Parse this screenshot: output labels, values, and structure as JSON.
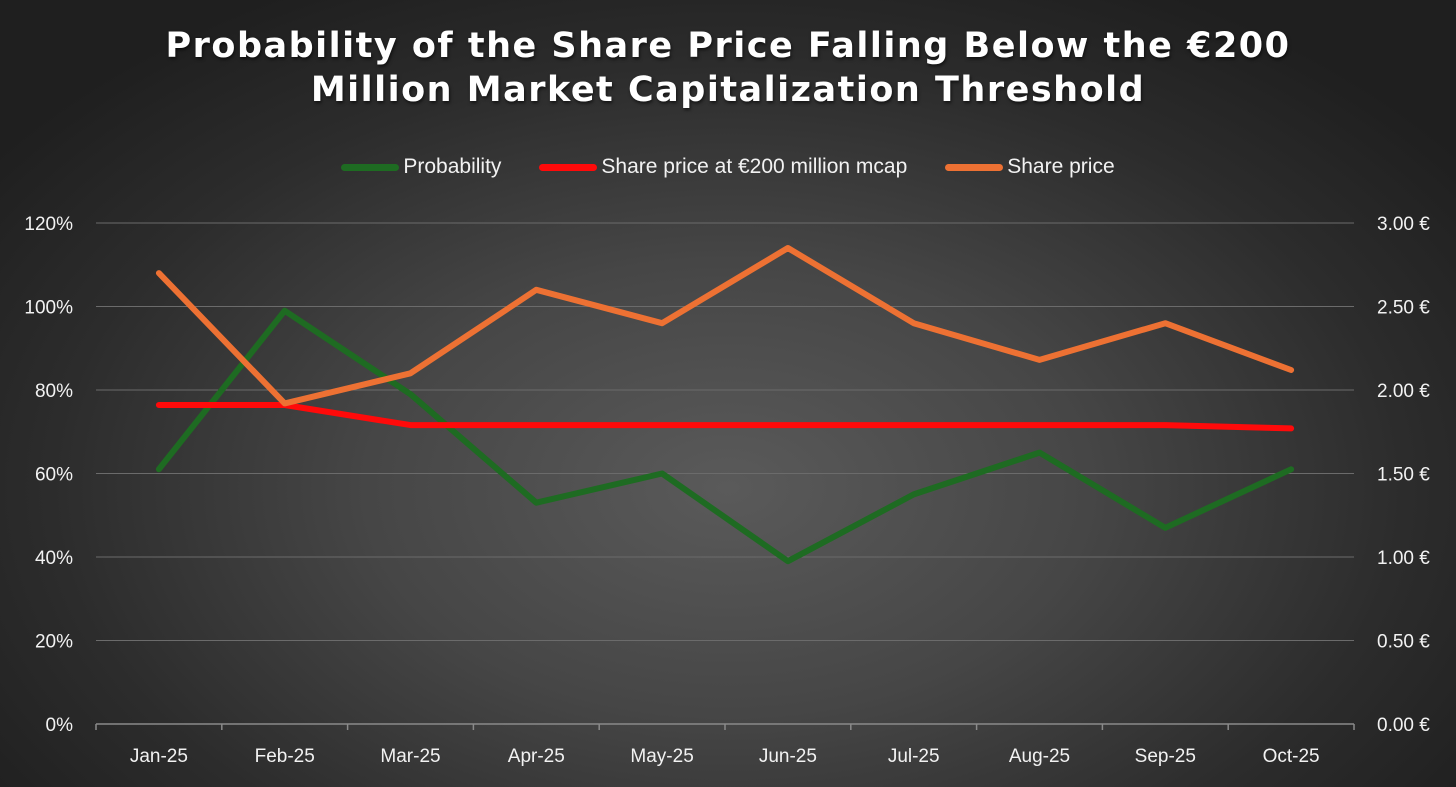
{
  "chart_data": {
    "type": "line",
    "title_lines": [
      "Probability of the Share Price Falling Below the €200",
      "Million Market Capitalization Threshold"
    ],
    "categories": [
      "Jan-25",
      "Feb-25",
      "Mar-25",
      "Apr-25",
      "May-25",
      "Jun-25",
      "Jul-25",
      "Aug-25",
      "Sep-25",
      "Oct-25"
    ],
    "left_axis": {
      "ylim": [
        0,
        1.2
      ],
      "tick_values": [
        0,
        0.2,
        0.4,
        0.6,
        0.8,
        1.0,
        1.2
      ],
      "tick_labels": [
        "0%",
        "20%",
        "40%",
        "60%",
        "80%",
        "100%",
        "120%"
      ]
    },
    "right_axis": {
      "ylim": [
        0,
        3.0
      ],
      "tick_values": [
        0,
        0.5,
        1.0,
        1.5,
        2.0,
        2.5,
        3.0
      ],
      "tick_labels": [
        "0.00 €",
        "0.50 €",
        "1.00 €",
        "1.50 €",
        "2.00 €",
        "2.50 €",
        "3.00 €"
      ]
    },
    "grid": true,
    "legend_position": "top-center",
    "series": [
      {
        "name": "Probability",
        "axis": "left",
        "color": "#1e6b22",
        "values": [
          0.61,
          0.99,
          0.79,
          0.53,
          0.6,
          0.39,
          0.55,
          0.65,
          0.47,
          0.61
        ]
      },
      {
        "name": "Share price at €200 million mcap",
        "axis": "right",
        "color": "#ff0a0a",
        "values": [
          1.91,
          1.91,
          1.79,
          1.79,
          1.79,
          1.79,
          1.79,
          1.79,
          1.79,
          1.77
        ]
      },
      {
        "name": "Share price",
        "axis": "right",
        "color": "#ed7133",
        "values": [
          2.7,
          1.92,
          2.1,
          2.6,
          2.4,
          2.85,
          2.4,
          2.18,
          2.4,
          2.12
        ]
      }
    ]
  }
}
